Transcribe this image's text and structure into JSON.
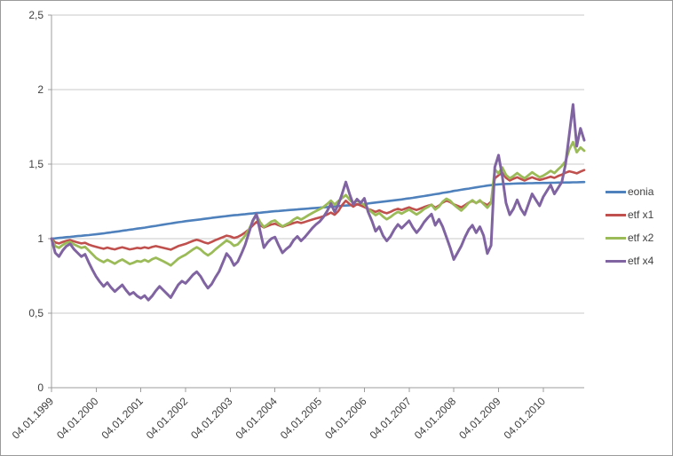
{
  "chart_data": {
    "type": "line",
    "title": "",
    "xlabel": "",
    "ylabel": "",
    "grid": "horizontal",
    "legend_position": "right",
    "ylim": [
      0,
      2.5
    ],
    "y_ticks": {
      "values": [
        0,
        0.5,
        1,
        1.5,
        2,
        2.5
      ],
      "labels": [
        "0",
        "0,5",
        "1",
        "1,5",
        "2",
        "2,5"
      ]
    },
    "x_tick_labels": [
      "04.01.1999",
      "04.01.2000",
      "04.01.2001",
      "04.01.2002",
      "04.01.2003",
      "04.01.2004",
      "04.01.2005",
      "04.01.2006",
      "04.01.2007",
      "04.01.2008",
      "04.01.2009",
      "04.01.2010"
    ],
    "x_resolution": "monthly, Jan 1999 - Dec 2010, 144 points per series",
    "colors": {
      "gridline": "#c9c9c9",
      "axis": "#9c9c9c",
      "tick_text": "#3f3f3f",
      "background": "#ffffff",
      "frame": "#9a9a9a"
    },
    "series": [
      {
        "name": "eonia",
        "color": "#4F81BD",
        "stroke_width": 2.6,
        "values": [
          1.0,
          1.002,
          1.005,
          1.007,
          1.01,
          1.012,
          1.014,
          1.017,
          1.019,
          1.022,
          1.024,
          1.027,
          1.029,
          1.032,
          1.035,
          1.039,
          1.042,
          1.046,
          1.049,
          1.053,
          1.056,
          1.06,
          1.063,
          1.067,
          1.07,
          1.074,
          1.078,
          1.082,
          1.086,
          1.09,
          1.094,
          1.098,
          1.102,
          1.106,
          1.11,
          1.113,
          1.117,
          1.12,
          1.123,
          1.126,
          1.129,
          1.133,
          1.136,
          1.139,
          1.142,
          1.145,
          1.148,
          1.151,
          1.154,
          1.157,
          1.159,
          1.162,
          1.164,
          1.167,
          1.169,
          1.172,
          1.174,
          1.177,
          1.179,
          1.182,
          1.184,
          1.186,
          1.188,
          1.19,
          1.192,
          1.194,
          1.196,
          1.198,
          1.2,
          1.202,
          1.204,
          1.206,
          1.208,
          1.21,
          1.212,
          1.214,
          1.216,
          1.218,
          1.22,
          1.222,
          1.224,
          1.227,
          1.229,
          1.231,
          1.233,
          1.236,
          1.239,
          1.242,
          1.245,
          1.248,
          1.251,
          1.254,
          1.257,
          1.26,
          1.263,
          1.267,
          1.27,
          1.274,
          1.278,
          1.282,
          1.286,
          1.29,
          1.294,
          1.298,
          1.302,
          1.307,
          1.311,
          1.315,
          1.32,
          1.324,
          1.328,
          1.332,
          1.336,
          1.34,
          1.344,
          1.348,
          1.352,
          1.356,
          1.359,
          1.362,
          1.364,
          1.366,
          1.367,
          1.368,
          1.369,
          1.37,
          1.371,
          1.371,
          1.372,
          1.372,
          1.373,
          1.373,
          1.374,
          1.374,
          1.375,
          1.375,
          1.376,
          1.376,
          1.377,
          1.377,
          1.378,
          1.378,
          1.379,
          1.38
        ]
      },
      {
        "name": "etf x1",
        "color": "#C0504D",
        "stroke_width": 2.6,
        "values": [
          1.0,
          0.975,
          0.968,
          0.978,
          0.985,
          0.99,
          0.982,
          0.975,
          0.968,
          0.972,
          0.96,
          0.952,
          0.945,
          0.938,
          0.932,
          0.94,
          0.933,
          0.928,
          0.936,
          0.942,
          0.935,
          0.928,
          0.932,
          0.938,
          0.935,
          0.942,
          0.936,
          0.944,
          0.95,
          0.944,
          0.938,
          0.932,
          0.926,
          0.938,
          0.95,
          0.958,
          0.965,
          0.975,
          0.985,
          0.992,
          0.985,
          0.975,
          0.968,
          0.978,
          0.99,
          1.0,
          1.01,
          1.02,
          1.015,
          1.005,
          1.012,
          1.025,
          1.042,
          1.062,
          1.088,
          1.112,
          1.09,
          1.075,
          1.085,
          1.095,
          1.1,
          1.09,
          1.08,
          1.088,
          1.096,
          1.105,
          1.112,
          1.105,
          1.112,
          1.12,
          1.128,
          1.135,
          1.142,
          1.15,
          1.162,
          1.175,
          1.16,
          1.185,
          1.225,
          1.255,
          1.232,
          1.215,
          1.232,
          1.222,
          1.212,
          1.2,
          1.19,
          1.18,
          1.19,
          1.178,
          1.17,
          1.18,
          1.192,
          1.2,
          1.192,
          1.202,
          1.21,
          1.2,
          1.192,
          1.202,
          1.212,
          1.22,
          1.228,
          1.208,
          1.222,
          1.242,
          1.255,
          1.245,
          1.23,
          1.22,
          1.21,
          1.225,
          1.242,
          1.252,
          1.24,
          1.252,
          1.238,
          1.225,
          1.248,
          1.405,
          1.425,
          1.442,
          1.408,
          1.39,
          1.402,
          1.412,
          1.4,
          1.39,
          1.402,
          1.412,
          1.402,
          1.394,
          1.4,
          1.408,
          1.416,
          1.408,
          1.42,
          1.43,
          1.442,
          1.452,
          1.446,
          1.438,
          1.45,
          1.46
        ]
      },
      {
        "name": "etf x2",
        "color": "#9BBB59",
        "stroke_width": 2.8,
        "values": [
          1.0,
          0.95,
          0.938,
          0.958,
          0.972,
          0.978,
          0.962,
          0.95,
          0.938,
          0.945,
          0.92,
          0.895,
          0.87,
          0.855,
          0.842,
          0.858,
          0.845,
          0.832,
          0.848,
          0.86,
          0.845,
          0.83,
          0.838,
          0.85,
          0.845,
          0.858,
          0.845,
          0.862,
          0.872,
          0.86,
          0.848,
          0.835,
          0.82,
          0.842,
          0.865,
          0.88,
          0.892,
          0.91,
          0.928,
          0.942,
          0.928,
          0.905,
          0.888,
          0.905,
          0.928,
          0.948,
          0.968,
          0.988,
          0.975,
          0.952,
          0.962,
          0.99,
          1.022,
          1.062,
          1.115,
          1.16,
          1.11,
          1.078,
          1.095,
          1.115,
          1.122,
          1.1,
          1.082,
          1.095,
          1.108,
          1.128,
          1.142,
          1.128,
          1.142,
          1.158,
          1.172,
          1.185,
          1.198,
          1.212,
          1.232,
          1.255,
          1.228,
          1.252,
          1.272,
          1.292,
          1.262,
          1.238,
          1.255,
          1.24,
          1.228,
          1.198,
          1.178,
          1.158,
          1.172,
          1.148,
          1.13,
          1.145,
          1.165,
          1.18,
          1.168,
          1.182,
          1.195,
          1.178,
          1.162,
          1.178,
          1.198,
          1.212,
          1.228,
          1.195,
          1.215,
          1.248,
          1.268,
          1.255,
          1.228,
          1.208,
          1.188,
          1.212,
          1.24,
          1.258,
          1.238,
          1.258,
          1.232,
          1.208,
          1.24,
          1.465,
          1.438,
          1.478,
          1.428,
          1.405,
          1.42,
          1.44,
          1.42,
          1.405,
          1.425,
          1.445,
          1.428,
          1.412,
          1.422,
          1.438,
          1.455,
          1.44,
          1.465,
          1.488,
          1.52,
          1.598,
          1.648,
          1.58,
          1.612,
          1.59
        ]
      },
      {
        "name": "etf x4",
        "color": "#8064A2",
        "stroke_width": 3.0,
        "values": [
          1.0,
          0.905,
          0.88,
          0.92,
          0.95,
          0.965,
          0.93,
          0.905,
          0.88,
          0.895,
          0.84,
          0.79,
          0.745,
          0.71,
          0.68,
          0.705,
          0.672,
          0.645,
          0.668,
          0.69,
          0.655,
          0.625,
          0.64,
          0.615,
          0.6,
          0.618,
          0.588,
          0.615,
          0.65,
          0.68,
          0.655,
          0.63,
          0.605,
          0.648,
          0.69,
          0.715,
          0.7,
          0.728,
          0.758,
          0.778,
          0.748,
          0.705,
          0.668,
          0.695,
          0.74,
          0.78,
          0.84,
          0.9,
          0.87,
          0.82,
          0.845,
          0.9,
          0.96,
          1.04,
          1.12,
          1.165,
          1.05,
          0.94,
          0.975,
          1.0,
          1.01,
          0.955,
          0.905,
          0.93,
          0.95,
          0.99,
          1.015,
          0.985,
          1.01,
          1.04,
          1.07,
          1.095,
          1.115,
          1.145,
          1.185,
          1.235,
          1.18,
          1.23,
          1.3,
          1.38,
          1.3,
          1.23,
          1.265,
          1.24,
          1.27,
          1.18,
          1.12,
          1.05,
          1.08,
          1.02,
          0.985,
          1.015,
          1.06,
          1.095,
          1.07,
          1.095,
          1.12,
          1.075,
          1.04,
          1.07,
          1.11,
          1.14,
          1.165,
          1.09,
          1.13,
          1.08,
          1.01,
          0.94,
          0.86,
          0.905,
          0.95,
          1.01,
          1.06,
          1.09,
          1.04,
          1.08,
          1.02,
          0.9,
          0.955,
          1.48,
          1.56,
          1.42,
          1.24,
          1.16,
          1.2,
          1.26,
          1.2,
          1.16,
          1.23,
          1.3,
          1.26,
          1.22,
          1.28,
          1.32,
          1.36,
          1.3,
          1.34,
          1.38,
          1.5,
          1.7,
          1.9,
          1.62,
          1.74,
          1.66
        ]
      }
    ]
  }
}
